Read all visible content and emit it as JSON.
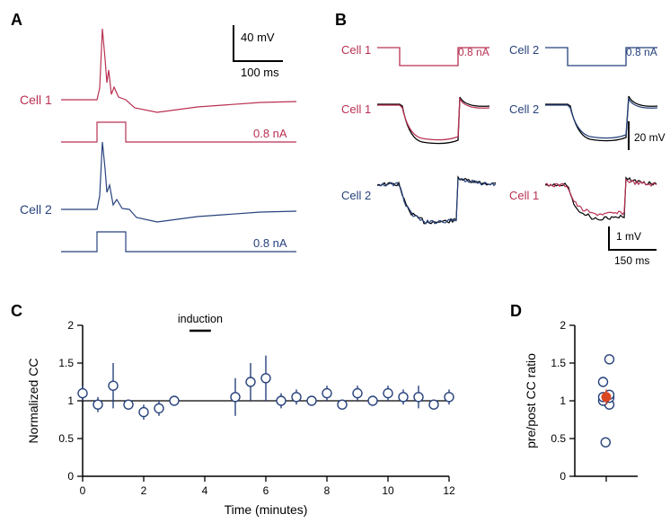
{
  "colors": {
    "bg": "#ffffff",
    "black": "#000000",
    "cell1": "#b93152",
    "cell2": "#27427c",
    "axis": "#000000"
  },
  "panel_letters": {
    "fontsize": 18,
    "fontweight": "700"
  },
  "labels": {
    "fontsize": 14
  },
  "panelA": {
    "letter": "A",
    "cell1_label": "Cell 1",
    "cell2_label": "Cell 2",
    "stim_label": "0.8 nA",
    "scale_v": "40 mV",
    "scale_h": "100 ms",
    "trace_cell1": {
      "color": "#b93152",
      "linewidth": 1.2,
      "pulse_height_mV": 40,
      "spike_height_mV": 65,
      "pulse_duration_ms": 50
    },
    "trace_cell2": {
      "color": "#27427c",
      "linewidth": 1.2,
      "pulse_height_mV": 40,
      "spike_height_mV": 65,
      "pulse_duration_ms": 50
    },
    "stim_trace": {
      "height_nA": 0.8,
      "linewidth": 1.2
    }
  },
  "panelB": {
    "letter": "B",
    "left": {
      "stim_label_cell": "Cell 1",
      "stim_label_nA": "0.8 nA",
      "mid_label": "Cell 1",
      "bottom_label": "Cell 2"
    },
    "right": {
      "stim_label_cell": "Cell 2",
      "stim_label_nA": "0.8 nA",
      "mid_label": "Cell 2",
      "bottom_label": "Cell 1"
    },
    "stim_trace": {
      "linewidth": 1.2,
      "hyper_duration_ms": 150,
      "hyper_nA": -0.8
    },
    "mid_trace": {
      "linewidth": 1.2,
      "hyper_mV": -20,
      "overlay_colors": [
        "main",
        "#000000"
      ]
    },
    "bottom_trace": {
      "linewidth": 1.2,
      "hyper_mV": -1,
      "overlay_colors": [
        "main",
        "#000000"
      ],
      "noise_amp_mV": 0.15
    },
    "scale_mid": {
      "v": "20 mV"
    },
    "scale_bottom": {
      "v": "1 mV",
      "h": "150 ms"
    }
  },
  "panelC": {
    "letter": "C",
    "type": "scatter-errorbar",
    "xlabel": "Time (minutes)",
    "ylabel": "Normalized CC",
    "xlim": [
      0,
      12
    ],
    "xtick_step": 2,
    "xticks": [
      0,
      2,
      4,
      6,
      8,
      10,
      12
    ],
    "ylim": [
      0,
      2
    ],
    "ytick_step": 0.5,
    "yticks": [
      0,
      0.5,
      1,
      1.5,
      2
    ],
    "induction_label": "induction",
    "induction_bar_start_min": 3.5,
    "induction_bar_end_min": 4.2,
    "hline_y": 1.0,
    "label_fontsize": 14,
    "tick_fontsize": 12,
    "marker": {
      "type": "open-circle",
      "size": 5,
      "edge_color": "#27427c",
      "fill": "#ffffff",
      "edge_width": 1.4
    },
    "errorbar": {
      "color": "#27427c",
      "width": 1.4,
      "cap": 0
    },
    "data": [
      {
        "x": 0.0,
        "y": 1.1,
        "err": 0.1
      },
      {
        "x": 0.5,
        "y": 0.95,
        "err": 0.1
      },
      {
        "x": 1.0,
        "y": 1.2,
        "err": 0.3
      },
      {
        "x": 1.5,
        "y": 0.95,
        "err": 0.0
      },
      {
        "x": 2.0,
        "y": 0.85,
        "err": 0.1
      },
      {
        "x": 2.5,
        "y": 0.9,
        "err": 0.1
      },
      {
        "x": 3.0,
        "y": 1.0,
        "err": 0.05
      },
      {
        "x": 5.0,
        "y": 1.05,
        "err": 0.25
      },
      {
        "x": 5.5,
        "y": 1.25,
        "err": 0.25
      },
      {
        "x": 6.0,
        "y": 1.3,
        "err": 0.3
      },
      {
        "x": 6.5,
        "y": 1.0,
        "err": 0.1
      },
      {
        "x": 7.0,
        "y": 1.05,
        "err": 0.1
      },
      {
        "x": 7.5,
        "y": 1.0,
        "err": 0.05
      },
      {
        "x": 8.0,
        "y": 1.1,
        "err": 0.1
      },
      {
        "x": 8.5,
        "y": 0.95,
        "err": 0.05
      },
      {
        "x": 9.0,
        "y": 1.1,
        "err": 0.1
      },
      {
        "x": 9.5,
        "y": 1.0,
        "err": 0.02
      },
      {
        "x": 10.0,
        "y": 1.1,
        "err": 0.1
      },
      {
        "x": 10.5,
        "y": 1.05,
        "err": 0.1
      },
      {
        "x": 11.0,
        "y": 1.05,
        "err": 0.15
      },
      {
        "x": 11.5,
        "y": 0.95,
        "err": 0.0
      },
      {
        "x": 12.0,
        "y": 1.05,
        "err": 0.1
      }
    ]
  },
  "panelD": {
    "letter": "D",
    "type": "strip-scatter",
    "ylabel": "pre/post CC ratio",
    "ylim": [
      0,
      2
    ],
    "yticks": [
      0,
      0.5,
      1,
      1.5,
      2
    ],
    "label_fontsize": 14,
    "tick_fontsize": 12,
    "marker": {
      "type": "open-circle",
      "size": 5,
      "edge_color": "#27427c",
      "fill": "#ffffff",
      "edge_width": 1.4
    },
    "mean_marker": {
      "type": "filled-circle",
      "size": 5,
      "color": "#d94822",
      "errorbar_color": "#d94822",
      "errorbar_width": 1.4
    },
    "points": [
      0.45,
      0.95,
      1.0,
      1.04,
      1.05,
      1.08,
      1.25,
      1.55
    ],
    "mean": {
      "y": 1.05,
      "err": 0.1
    }
  }
}
